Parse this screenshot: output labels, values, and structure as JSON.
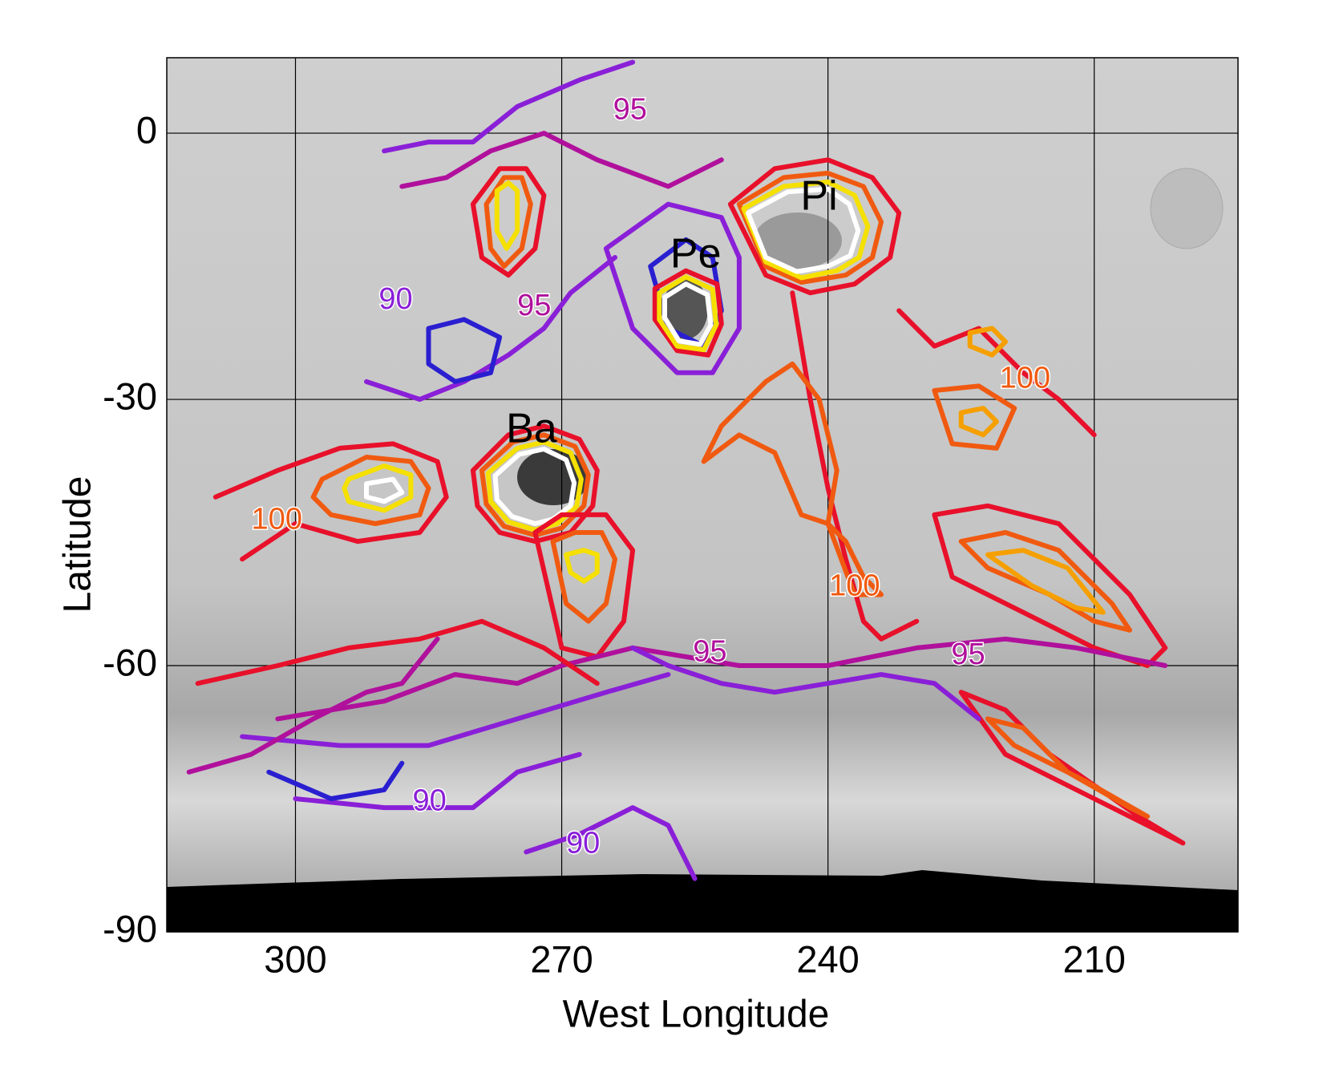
{
  "chart_data": {
    "type": "contour",
    "x_label": "West Longitude",
    "y_label": "Latitude",
    "xlim": [
      314.5,
      193.8
    ],
    "ylim": [
      -90,
      8.5
    ],
    "xticks": [
      300,
      270,
      240,
      210
    ],
    "yticks": [
      0,
      -30,
      -60,
      -90
    ],
    "grid": true,
    "contours": [
      {
        "color": "#e8102a",
        "x": [
          309,
          302,
          295,
          289,
          284,
          283,
          286,
          293,
          300,
          306
        ],
        "y": [
          -41,
          -38,
          -35.5,
          -35,
          -37,
          -41,
          -45,
          -46,
          -44,
          -48
        ]
      },
      {
        "color": "#f05a10",
        "x": [
          297,
          292,
          287,
          285,
          286,
          291,
          296,
          298,
          297
        ],
        "y": [
          -39,
          -36.5,
          -37,
          -40,
          -43,
          -44,
          -43,
          -41,
          -39
        ]
      },
      {
        "color": "#f5e000",
        "x": [
          294,
          290,
          287,
          287,
          290,
          294,
          294.5,
          294
        ],
        "y": [
          -39,
          -37.5,
          -38.5,
          -41,
          -42.5,
          -41.5,
          -40,
          -39
        ]
      },
      {
        "color": "#ffffff",
        "x": [
          292,
          289,
          288,
          290,
          292,
          292
        ],
        "y": [
          -39.5,
          -39,
          -40.5,
          -41.5,
          -41,
          -39.5
        ]
      },
      {
        "color": "#e8102a",
        "x": [
          280,
          276,
          272,
          268,
          266,
          266.5,
          269,
          273,
          277,
          279.5,
          280
        ],
        "y": [
          -38,
          -34,
          -33,
          -34.5,
          -38,
          -42,
          -45,
          -46,
          -45,
          -42,
          -38
        ]
      },
      {
        "color": "#f05a10",
        "x": [
          279,
          275.5,
          272,
          268.5,
          267,
          267.5,
          270,
          273,
          276.5,
          278.5,
          279
        ],
        "y": [
          -38,
          -34.8,
          -34,
          -35.3,
          -38.5,
          -42,
          -44.5,
          -45.3,
          -44.3,
          -41.8,
          -38
        ]
      },
      {
        "color": "#f5e000",
        "x": [
          278.3,
          275,
          272,
          269,
          267.8,
          268.3,
          270.5,
          273,
          276,
          278,
          278.3
        ],
        "y": [
          -38.3,
          -35.5,
          -34.8,
          -36,
          -39,
          -42,
          -44,
          -44.7,
          -43.8,
          -41.5,
          -38.3
        ]
      },
      {
        "color": "#ffffff",
        "x": [
          277.5,
          274.8,
          272,
          269.5,
          268.6,
          269,
          271,
          273,
          275.6,
          277.3,
          277.5
        ],
        "y": [
          -38.6,
          -36.2,
          -35.6,
          -36.8,
          -39.4,
          -42,
          -43.5,
          -44,
          -43.2,
          -41.3,
          -38.6
        ]
      },
      {
        "color": "#8a1fd8",
        "x": [
          265,
          258,
          252,
          250,
          250,
          253,
          257,
          262,
          265
        ],
        "y": [
          -13,
          -8,
          -9.5,
          -14,
          -22,
          -27,
          -27,
          -22,
          -13
        ]
      },
      {
        "color": "#2a1fd0",
        "x": [
          260,
          256,
          253,
          252,
          254,
          258,
          260
        ],
        "y": [
          -15,
          -12,
          -14,
          -20,
          -24,
          -22,
          -15
        ]
      },
      {
        "color": "#e8102a",
        "x": [
          259.5,
          256,
          252.5,
          252,
          253.5,
          257,
          259.5,
          259.5
        ],
        "y": [
          -17.5,
          -15.5,
          -17,
          -21.5,
          -25,
          -24.5,
          -21,
          -17.5
        ]
      },
      {
        "color": "#f5e000",
        "x": [
          259,
          256,
          253,
          252.6,
          254,
          257,
          259,
          259
        ],
        "y": [
          -18,
          -16.2,
          -17.6,
          -21.6,
          -24.4,
          -24,
          -21,
          -18
        ]
      },
      {
        "color": "#ffffff",
        "x": [
          258.4,
          256,
          253.6,
          253.2,
          254.4,
          256.8,
          258.4,
          258.4
        ],
        "y": [
          -18.5,
          -17,
          -18.2,
          -21.6,
          -23.8,
          -23.4,
          -20.8,
          -18.5
        ]
      },
      {
        "color": "#e8102a",
        "x": [
          251,
          246,
          240,
          235,
          232,
          233,
          237,
          242,
          247,
          251
        ],
        "y": [
          -8,
          -4,
          -3,
          -5,
          -9,
          -14,
          -17,
          -18,
          -16,
          -8
        ]
      },
      {
        "color": "#f05a10",
        "x": [
          250,
          245,
          240,
          236,
          234,
          235,
          238,
          243,
          247,
          250
        ],
        "y": [
          -8,
          -5,
          -4.5,
          -6,
          -10,
          -14,
          -16,
          -16.8,
          -15,
          -8
        ]
      },
      {
        "color": "#f5e000",
        "x": [
          249.5,
          245,
          240,
          237,
          235.5,
          236.5,
          239,
          243,
          247,
          249.5
        ],
        "y": [
          -8.5,
          -6,
          -5.5,
          -7,
          -10.5,
          -14,
          -15.5,
          -16.3,
          -14.5,
          -8.5
        ]
      },
      {
        "color": "#ffffff",
        "x": [
          249,
          244.5,
          240,
          237.6,
          236.6,
          237.5,
          240,
          243.5,
          247,
          249
        ],
        "y": [
          -9,
          -6.6,
          -6.3,
          -8,
          -11,
          -13.8,
          -15,
          -15.6,
          -14,
          -9
        ]
      },
      {
        "color": "#e8102a",
        "x": [
          280,
          277,
          274,
          272,
          273,
          276,
          279,
          280
        ],
        "y": [
          -8,
          -4,
          -4,
          -7,
          -13,
          -16,
          -14,
          -8
        ]
      },
      {
        "color": "#f05a10",
        "x": [
          278.5,
          276.5,
          274.5,
          273.5,
          274.5,
          276.5,
          278,
          278.5
        ],
        "y": [
          -8,
          -5,
          -5,
          -8,
          -13,
          -15,
          -13,
          -8
        ]
      },
      {
        "color": "#f5e000",
        "x": [
          277.3,
          276,
          275,
          275,
          276.2,
          277.3,
          277.3
        ],
        "y": [
          -6.5,
          -5.6,
          -6.5,
          -11,
          -13,
          -11,
          -6.5
        ]
      },
      {
        "color": "#e8102a",
        "x": [
          273,
          270,
          265,
          262,
          263,
          266,
          270,
          273
        ],
        "y": [
          -45,
          -43,
          -43,
          -47,
          -55,
          -59,
          -58,
          -45
        ]
      },
      {
        "color": "#f05a10",
        "x": [
          271,
          268.5,
          265.5,
          264,
          265,
          267,
          269.5,
          271
        ],
        "y": [
          -46,
          -45,
          -45,
          -48,
          -53,
          -55,
          -53,
          -46
        ]
      },
      {
        "color": "#f5e000",
        "x": [
          269.5,
          267.5,
          266,
          266,
          267.5,
          269,
          269.5
        ],
        "y": [
          -47.5,
          -47,
          -47.5,
          -49.5,
          -50.5,
          -49.5,
          -47.5
        ]
      },
      {
        "color": "#f05a10",
        "x": [
          225,
          220,
          214,
          208,
          206,
          210,
          215,
          222,
          225
        ],
        "y": [
          -46,
          -45,
          -47,
          -53,
          -56,
          -55,
          -52,
          -49,
          -46
        ]
      },
      {
        "color": "#f5a000",
        "x": [
          222,
          218,
          213,
          209,
          212,
          217,
          222
        ],
        "y": [
          -47.5,
          -47,
          -49,
          -54,
          -53.5,
          -51,
          -47.5
        ]
      },
      {
        "color": "#e8102a",
        "x": [
          228,
          222,
          214,
          206,
          202,
          204,
          210,
          218,
          226,
          228
        ],
        "y": [
          -43,
          -42,
          -44,
          -52,
          -58,
          -60,
          -58,
          -54,
          -50,
          -43
        ]
      },
      {
        "color": "#e8102a",
        "x": [
          225,
          220,
          215,
          205,
          200,
          210,
          220,
          225
        ],
        "y": [
          -63,
          -65,
          -70,
          -77,
          -80,
          -75,
          -70,
          -63
        ]
      },
      {
        "color": "#f05a10",
        "x": [
          222,
          218,
          213,
          206,
          204,
          211,
          219,
          222
        ],
        "y": [
          -66,
          -67,
          -72,
          -76,
          -77,
          -73,
          -69,
          -66
        ]
      },
      {
        "color": "#8a1fd8",
        "x": [
          306,
          295,
          285,
          275,
          265,
          258
        ],
        "y": [
          -68,
          -69,
          -69,
          -66,
          -63,
          -61
        ]
      },
      {
        "color": "#8a1fd8",
        "x": [
          300,
          290,
          280,
          275,
          268
        ],
        "y": [
          -75,
          -76,
          -76,
          -72,
          -70
        ]
      },
      {
        "color": "#8a1fd8",
        "x": [
          274,
          268,
          262,
          258,
          255
        ],
        "y": [
          -81,
          -79,
          -76,
          -78,
          -84
        ]
      },
      {
        "color": "#2a1fd0",
        "x": [
          303,
          296,
          290,
          288
        ],
        "y": [
          -72,
          -75,
          -74,
          -71
        ]
      },
      {
        "color": "#b0109c",
        "x": [
          302,
          290,
          282,
          275,
          270,
          262,
          250,
          240,
          230,
          220,
          212,
          202
        ],
        "y": [
          -66,
          -64,
          -61,
          -62,
          -60,
          -58,
          -60,
          -60,
          -58,
          -57,
          -58,
          -60
        ]
      },
      {
        "color": "#e8102a",
        "x": [
          311,
          302,
          294,
          286,
          279,
          272,
          266
        ],
        "y": [
          -62,
          -60,
          -58,
          -57,
          -55,
          -58,
          -62
        ]
      },
      {
        "color": "#8a1fd8",
        "x": [
          290,
          285,
          280,
          275,
          268,
          262
        ],
        "y": [
          -2,
          -1,
          -1,
          3,
          6,
          8
        ]
      },
      {
        "color": "#b0109c",
        "x": [
          288,
          283,
          278,
          272,
          266,
          258,
          252
        ],
        "y": [
          -6,
          -5,
          -2,
          0,
          -3,
          -6,
          -3
        ]
      },
      {
        "color": "#8a1fd8",
        "x": [
          292,
          286,
          281,
          276,
          272,
          269,
          264
        ],
        "y": [
          -28,
          -30,
          -28,
          -25,
          -22,
          -18,
          -14
        ]
      },
      {
        "color": "#2a1fd0",
        "x": [
          285,
          281,
          277,
          278,
          282,
          285,
          285
        ],
        "y": [
          -22,
          -21,
          -23,
          -27,
          -28,
          -26,
          -22
        ]
      },
      {
        "color": "#e8102a",
        "x": [
          244,
          242,
          240,
          238,
          236,
          234,
          230
        ],
        "y": [
          -18,
          -30,
          -40,
          -48,
          -55,
          -57,
          -55
        ]
      },
      {
        "color": "#f05a10",
        "x": [
          252,
          247,
          244,
          241,
          239,
          240,
          243,
          246,
          250,
          254,
          252
        ],
        "y": [
          -33,
          -28,
          -26,
          -30,
          -38,
          -44,
          -43,
          -36,
          -34,
          -37,
          -33
        ]
      },
      {
        "color": "#f05a10",
        "x": [
          240,
          238,
          236,
          234,
          237,
          240
        ],
        "y": [
          -44,
          -46,
          -50,
          -52,
          -52,
          -44
        ]
      },
      {
        "color": "#e8102a",
        "x": [
          232,
          228,
          223,
          218,
          214,
          210
        ],
        "y": [
          -20,
          -24,
          -22,
          -27,
          -30,
          -34
        ]
      },
      {
        "color": "#f5a000",
        "x": [
          224,
          221.5,
          220,
          221.5,
          224,
          224
        ],
        "y": [
          -22.5,
          -22,
          -23.5,
          -25,
          -24,
          -22.5
        ]
      },
      {
        "color": "#f5a000",
        "x": [
          225,
          222.5,
          221,
          222.5,
          225,
          225
        ],
        "y": [
          -31.5,
          -31,
          -32.5,
          -34,
          -33,
          -31.5
        ]
      },
      {
        "color": "#f05a10",
        "x": [
          228,
          223,
          219,
          221,
          226,
          228
        ],
        "y": [
          -29,
          -28.5,
          -31,
          -35.5,
          -35,
          -29
        ]
      },
      {
        "color": "#b0109c",
        "x": [
          312,
          305,
          298,
          292,
          288,
          284
        ],
        "y": [
          -72,
          -70,
          -66,
          -63,
          -62,
          -57
        ]
      },
      {
        "color": "#8a1fd8",
        "x": [
          262,
          258,
          252,
          246,
          240,
          234,
          228,
          223
        ],
        "y": [
          -58,
          -60,
          -62,
          -63,
          -62,
          -61,
          -62,
          -66
        ]
      }
    ],
    "annotations": [
      {
        "text": "Pi",
        "x": 241.0,
        "y": -7.4,
        "color": "#000000"
      },
      {
        "text": "Pe",
        "x": 254.9,
        "y": -13.9,
        "color": "#000000"
      },
      {
        "text": "Ba",
        "x": 273.4,
        "y": -33.6,
        "color": "#000000"
      },
      {
        "text": "95",
        "x": 262.3,
        "y": 2.5,
        "color": "#b0109c"
      },
      {
        "text": "90",
        "x": 288.7,
        "y": -18.9,
        "color": "#8a1fd8"
      },
      {
        "text": "95",
        "x": 273.1,
        "y": -19.6,
        "color": "#b0109c"
      },
      {
        "text": "100",
        "x": 302.1,
        "y": -43.7,
        "color": "#f05a10"
      },
      {
        "text": "100",
        "x": 217.8,
        "y": -27.8,
        "color": "#f05a10"
      },
      {
        "text": "100",
        "x": 237.0,
        "y": -51.2,
        "color": "#f05a10"
      },
      {
        "text": "95",
        "x": 253.3,
        "y": -58.6,
        "color": "#b0109c"
      },
      {
        "text": "95",
        "x": 224.2,
        "y": -58.9,
        "color": "#b0109c"
      },
      {
        "text": "90",
        "x": 284.9,
        "y": -75.4,
        "color": "#8a1fd8"
      },
      {
        "text": "90",
        "x": 267.6,
        "y": -80.2,
        "color": "#8a1fd8"
      }
    ]
  }
}
